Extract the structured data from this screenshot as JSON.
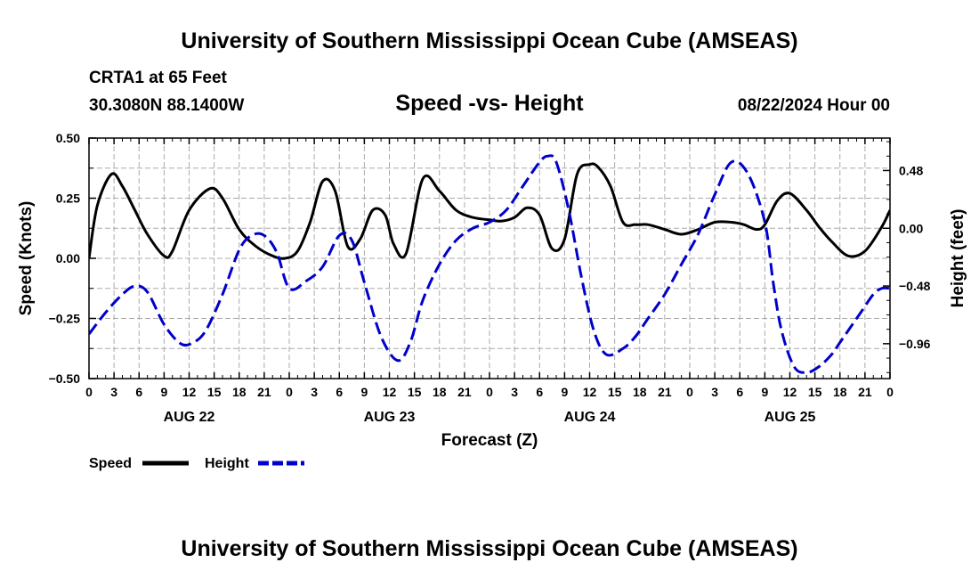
{
  "header": {
    "title": "University of Southern Mississippi Ocean Cube (AMSEAS)",
    "station": "CRTA1 at 65 Feet",
    "location": "30.3080N  88.1400W",
    "datetime": "08/22/2024 Hour 00"
  },
  "footer": {
    "title": "University of Southern Mississippi Ocean Cube (AMSEAS)"
  },
  "chart_data": {
    "type": "line",
    "title": "Speed -vs- Height",
    "xlabel": "Forecast (Z)",
    "ylabel_left": "Speed (Knots)",
    "ylabel_right": "Height (feet)",
    "x_unit": "hours from 08/22 00Z",
    "xlim": [
      0,
      96
    ],
    "ylim_left": [
      -0.5,
      0.5
    ],
    "ylim_right": [
      -1.25,
      0.75
    ],
    "x_tick_labels": [
      "0",
      "3",
      "6",
      "9",
      "12",
      "15",
      "18",
      "21",
      "0",
      "3",
      "6",
      "9",
      "12",
      "15",
      "18",
      "21",
      "0",
      "3",
      "6",
      "9",
      "12",
      "15",
      "18",
      "21",
      "0",
      "3",
      "6",
      "9",
      "12",
      "15",
      "18",
      "21",
      "0"
    ],
    "y_ticks_left": [
      "0.50",
      "0.25",
      "0.00",
      "−0.25",
      "−0.50"
    ],
    "y_ticks_right": [
      "0.48",
      "0.00",
      "−0.48",
      "−0.96"
    ],
    "day_labels": [
      "AUG 22",
      "AUG 23",
      "AUG 24",
      "AUG 25"
    ],
    "legend": [
      "Speed",
      "Height"
    ],
    "colors": {
      "speed": "#000000",
      "height": "#0000cc",
      "grid": "#aaaaaa"
    },
    "series": [
      {
        "name": "Speed",
        "axis": "left",
        "x": [
          0,
          1,
          2.7,
          4,
          5.5,
          7,
          9,
          10,
          12,
          14.5,
          16,
          18,
          20,
          22,
          23.5,
          25,
          26.5,
          28,
          29.5,
          31,
          32.5,
          34,
          35.5,
          36.5,
          38,
          40,
          42,
          44,
          46,
          48,
          49.5,
          51,
          52.5,
          54,
          55.5,
          57,
          58.5,
          60,
          61,
          62.5,
          64,
          65.5,
          67,
          69,
          71,
          73,
          75,
          77,
          78.5,
          80,
          81,
          82.5,
          84,
          86,
          87.5,
          89,
          91,
          93,
          95,
          96
        ],
        "values": [
          0.0,
          0.22,
          0.35,
          0.3,
          0.2,
          0.1,
          0.01,
          0.03,
          0.2,
          0.29,
          0.25,
          0.12,
          0.05,
          0.01,
          0.0,
          0.03,
          0.15,
          0.32,
          0.28,
          0.05,
          0.08,
          0.2,
          0.18,
          0.06,
          0.02,
          0.33,
          0.28,
          0.2,
          0.17,
          0.16,
          0.155,
          0.17,
          0.21,
          0.18,
          0.04,
          0.08,
          0.35,
          0.39,
          0.38,
          0.3,
          0.15,
          0.14,
          0.14,
          0.12,
          0.1,
          0.12,
          0.15,
          0.15,
          0.14,
          0.12,
          0.14,
          0.24,
          0.27,
          0.2,
          0.13,
          0.07,
          0.01,
          0.03,
          0.13,
          0.2
        ]
      },
      {
        "name": "Height",
        "axis": "right",
        "x": [
          0,
          2,
          4,
          5.5,
          7,
          9,
          11,
          12.5,
          14,
          16,
          18,
          19.5,
          21,
          22.5,
          24,
          26,
          28,
          30,
          31.5,
          33,
          35,
          37,
          38.5,
          40,
          42,
          44,
          46,
          48,
          50,
          52,
          54,
          55,
          56,
          57.5,
          59,
          60.5,
          62,
          64,
          65.5,
          67,
          69,
          71,
          73,
          75,
          77,
          79,
          81,
          82,
          83,
          84.5,
          86,
          87.5,
          89,
          90,
          91,
          92.5,
          94,
          95,
          96
        ],
        "values": [
          -0.88,
          -0.7,
          -0.55,
          -0.48,
          -0.53,
          -0.8,
          -0.96,
          -0.95,
          -0.85,
          -0.55,
          -0.18,
          -0.06,
          -0.06,
          -0.2,
          -0.5,
          -0.44,
          -0.32,
          -0.06,
          -0.1,
          -0.45,
          -0.9,
          -1.1,
          -0.95,
          -0.6,
          -0.3,
          -0.1,
          0.0,
          0.05,
          0.15,
          0.35,
          0.55,
          0.6,
          0.55,
          0.15,
          -0.4,
          -0.85,
          -1.05,
          -1.0,
          -0.9,
          -0.75,
          -0.55,
          -0.3,
          -0.05,
          0.28,
          0.55,
          0.45,
          0.05,
          -0.45,
          -0.85,
          -1.15,
          -1.2,
          -1.15,
          -1.05,
          -0.95,
          -0.85,
          -0.7,
          -0.55,
          -0.5,
          -0.5
        ]
      }
    ]
  }
}
